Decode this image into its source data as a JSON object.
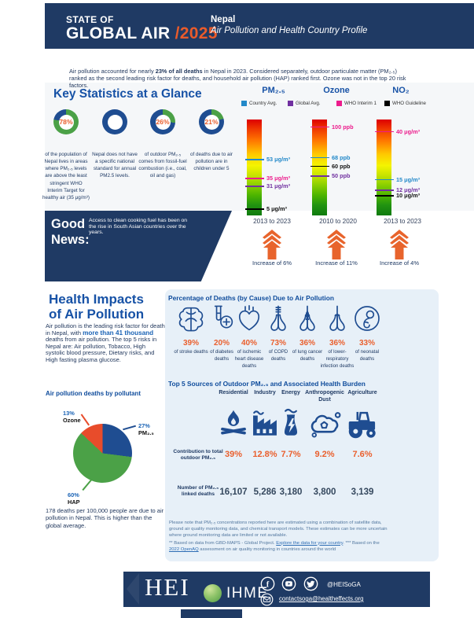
{
  "colors": {
    "navy": "#1F3A64",
    "blue": "#1752A6",
    "orange": "#EA5F2D",
    "panel_blue": "#E7F0F8",
    "donut_green": "#4BA147",
    "donut_blue": "#1F4D91"
  },
  "header": {
    "kicker": "STATE OF",
    "title": "GLOBAL AIR ",
    "year": "/2025",
    "country": "Nepal",
    "subtitle": "Air Pollution and Health Country Profile"
  },
  "intro": {
    "pre": "Air pollution accounted for nearly ",
    "bold": "23% of all deaths",
    "post": " in Nepal in 2023. Considered separately, outdoor particulate matter (PM₂.₅) ranked as the second leading risk factor for deaths, and household air pollution (HAP) ranked first. Ozone was not in the top 20 risk factors."
  },
  "key_stats": {
    "title": "Key Statistics at a Glance",
    "items": [
      {
        "pct": "78%",
        "value": 78,
        "caption": "of the population of Nepal lives in areas where PM₂.₅ levels are above the least stringent WHO Interim Target for healthy air (35 μg/m³)"
      },
      {
        "pct": "",
        "value": 0,
        "caption": "Nepal does not have a specific national standard for annual PM2.5 levels."
      },
      {
        "pct": "26%",
        "value": 26,
        "caption": "of outdoor PM₂.₅ comes from fossil-fuel combustion (i.e., coal, oil and gas)"
      },
      {
        "pct": "21%",
        "value": 21,
        "caption": "of deaths due to air pollution are in children under 5"
      }
    ]
  },
  "gauges": {
    "type_colors": {
      "country": "#2389C9",
      "global": "#7030A0",
      "interim": "#EC1C8C",
      "guideline": "#000000"
    },
    "legend": [
      {
        "label": "Country Avg.",
        "color": "#2389C9"
      },
      {
        "label": "Global Avg.",
        "color": "#7030A0"
      },
      {
        "label": "WHO Interim 1",
        "color": "#EC1C8C"
      },
      {
        "label": "WHO Guideline",
        "color": "#000000"
      }
    ],
    "items": [
      {
        "title": "PM₂.₅",
        "period": "2013 to 2023",
        "change": "Increase of 6%",
        "markers": [
          {
            "label": "53 μg/m³",
            "type": "country",
            "pos": 41
          },
          {
            "label": "35 μg/m³",
            "type": "interim",
            "pos": 61
          },
          {
            "label": "31 μg/m³",
            "type": "global",
            "pos": 69
          },
          {
            "label": "5 μg/m³",
            "type": "guideline",
            "pos": 93
          }
        ]
      },
      {
        "title": "Ozone",
        "period": "2010 to 2020",
        "change": "Increase of 11%",
        "markers": [
          {
            "label": "100 ppb",
            "type": "interim",
            "pos": 7
          },
          {
            "label": "68 ppb",
            "type": "country",
            "pos": 39
          },
          {
            "label": "60 ppb",
            "type": "guideline",
            "pos": 48
          },
          {
            "label": "50 ppb",
            "type": "global",
            "pos": 58
          }
        ]
      },
      {
        "title": "NO₂",
        "period": "2013 to 2023",
        "change": "Increase of 4%",
        "markers": [
          {
            "label": "40 μg/m³",
            "type": "interim",
            "pos": 12
          },
          {
            "label": "15 μg/m³",
            "type": "country",
            "pos": 62
          },
          {
            "label": "12 μg/m³",
            "type": "global",
            "pos": 73
          },
          {
            "label": "10 μg/m³",
            "type": "guideline",
            "pos": 79
          }
        ]
      }
    ]
  },
  "good_news": {
    "title": "Good News:",
    "text": "Access to clean cooking fuel has been on the rise in South Asian countries over the years."
  },
  "health": {
    "title_line1": "Health Impacts",
    "title_line2": "of Air Pollution",
    "para_pre": "Air pollution is the leading risk factor for death in Nepal, with ",
    "para_bold": "more than 41 thousand",
    "para_post": " deaths from air pollution. The top 5 risks in Nepal are: Air pollution, Tobacco, High systolic blood pressure, Dietary risks, and High fasting plasma glucose.",
    "pie_title": "Air pollution deaths by pollutant",
    "note": "178 deaths per 100,000 people are due to air pollution in Nepal. This is higher than the global average."
  },
  "pie": {
    "slices": [
      {
        "label": "PM₂.₅",
        "pct": "27%",
        "value": 27,
        "color": "#1F4D91"
      },
      {
        "label": "HAP",
        "pct": "60%",
        "value": 60,
        "color": "#4BA147"
      },
      {
        "label": "Ozone",
        "pct": "13%",
        "value": 13,
        "color": "#E84C2B"
      }
    ]
  },
  "causes": {
    "title": "Percentage of Deaths (by Cause) Due to Air Pollution",
    "items": [
      {
        "pct": "39%",
        "caption": "of stroke deaths",
        "icon": "brain-icon"
      },
      {
        "pct": "20%",
        "caption": "of diabetes deaths",
        "icon": "diabetes-icon"
      },
      {
        "pct": "40%",
        "caption": "of ischemic heart disease deaths",
        "icon": "heart-icon"
      },
      {
        "pct": "73%",
        "caption": "of COPD deaths",
        "icon": "copd-lungs-icon"
      },
      {
        "pct": "36%",
        "caption": "of lung cancer deaths",
        "icon": "lung-cancer-ribbon-icon"
      },
      {
        "pct": "36%",
        "caption": "of lower-respiratory infection deaths",
        "icon": "lungs-icon"
      },
      {
        "pct": "33%",
        "caption": "of neonatal deaths",
        "icon": "fetus-icon"
      }
    ]
  },
  "sources": {
    "title": "Top 5 Sources of Outdoor PM₂.₅ and Associated Health Burden",
    "row1_label": "Contribution to total outdoor PM₂.₅",
    "row2_label": "Number of PM₂.₅ linked deaths",
    "columns": [
      {
        "name": "Residential",
        "icon": "campfire-icon",
        "contribution": "39%",
        "deaths": "16,107"
      },
      {
        "name": "Industry",
        "icon": "factory-icon",
        "contribution": "12.8%",
        "deaths": "5,286"
      },
      {
        "name": "Energy",
        "icon": "power-plant-icon",
        "contribution": "7.7%",
        "deaths": "3,180"
      },
      {
        "name": "Anthropogenic Dust",
        "icon": "dust-cloud-icon",
        "contribution": "9.2%",
        "deaths": "3,800"
      },
      {
        "name": "Agriculture",
        "icon": "tractor-icon",
        "contribution": "7.6%",
        "deaths": "3,139"
      }
    ]
  },
  "footnote": {
    "para": "Please note that PM₂.₅ concentrations reported here are estimated using a combination of satellite data, ground air quality monitoring data, and chemical transport models. These estimates can be more uncertain where ground monitoring data are limited or not available.",
    "line2_pre": "** Based on data from GBD-MAPS - Global Project. ",
    "link1": "Explore the data for your country",
    "line2_mid": ". *** Based on the ",
    "link2": "2022 OpenAQ",
    "line2_post": " assessment on air quality monitoring in countries around the world"
  },
  "footer": {
    "hei": "HEI",
    "ihme": "IHME",
    "handle": "@HEISoGA",
    "email": "contactsoga@healtheffects.org"
  }
}
